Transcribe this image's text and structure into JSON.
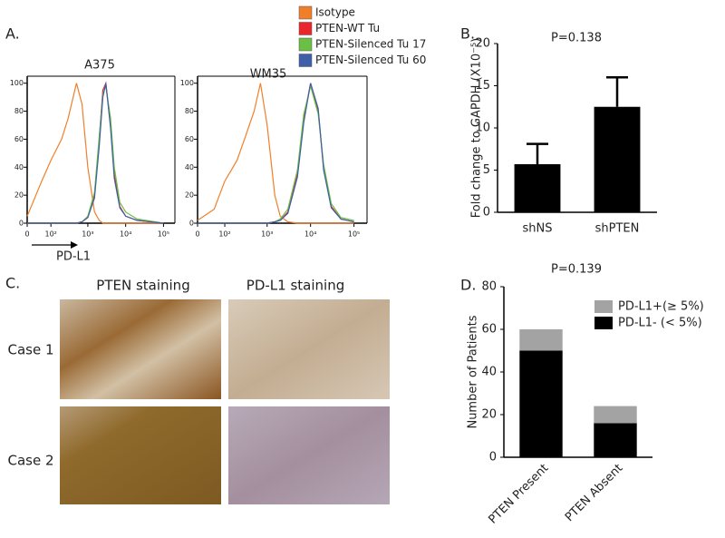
{
  "chart_data": [
    {
      "type": "line",
      "panel": "A.",
      "title": "A375",
      "x_label": "PD-L1",
      "xscale": "biexponential",
      "x": [
        0,
        50,
        100,
        200,
        300,
        500,
        700,
        1000,
        1500,
        2000,
        2500,
        3000,
        4000,
        5000,
        7000,
        10000,
        20000,
        100000
      ],
      "series": [
        {
          "name": "Isotype",
          "color": "#f07f2a",
          "values": [
            5,
            30,
            45,
            60,
            75,
            100,
            85,
            40,
            8,
            2,
            0,
            0,
            0,
            0,
            0,
            0,
            0,
            0
          ]
        },
        {
          "name": "PTEN-WT Tu",
          "color": "#e8262b",
          "values": [
            0,
            0,
            0,
            0,
            0,
            0,
            1,
            4,
            20,
            60,
            95,
            100,
            70,
            35,
            12,
            5,
            2,
            0
          ]
        },
        {
          "name": "PTEN-Silenced Tu 17",
          "color": "#6cbf45",
          "values": [
            0,
            0,
            0,
            0,
            0,
            0,
            1,
            5,
            22,
            62,
            92,
            98,
            75,
            40,
            15,
            8,
            3,
            0
          ]
        },
        {
          "name": "PTEN-Silenced Tu 60",
          "color": "#3f5fa8",
          "values": [
            0,
            0,
            0,
            0,
            0,
            0,
            1,
            4,
            18,
            55,
            90,
            100,
            68,
            32,
            11,
            5,
            2,
            0
          ]
        }
      ],
      "xlim": [
        0,
        200000
      ],
      "xticks": [
        0,
        {
          "value": 100,
          "label": "10²"
        },
        {
          "value": 1000,
          "label": "10³"
        },
        {
          "value": 10000,
          "label": "10⁴"
        },
        {
          "value": 100000,
          "label": "10⁵"
        }
      ],
      "ylim": [
        0,
        105
      ],
      "yticks": [
        0,
        20,
        40,
        60,
        80,
        100
      ]
    },
    {
      "type": "line",
      "title": "WM35",
      "xscale": "biexponential",
      "x": [
        0,
        50,
        100,
        200,
        300,
        500,
        700,
        1000,
        1500,
        2000,
        3000,
        5000,
        7000,
        10000,
        15000,
        20000,
        30000,
        50000,
        100000
      ],
      "series": [
        {
          "color": "#f07f2a",
          "values": [
            2,
            10,
            30,
            45,
            60,
            80,
            100,
            70,
            20,
            5,
            1,
            0,
            0,
            0,
            0,
            0,
            0,
            0,
            0
          ]
        },
        {
          "color": "#e8262b",
          "values": [
            0,
            0,
            0,
            0,
            0,
            0,
            0,
            0,
            1,
            2,
            8,
            35,
            75,
            100,
            80,
            40,
            12,
            3,
            1
          ]
        },
        {
          "color": "#6cbf45",
          "values": [
            0,
            0,
            0,
            0,
            0,
            0,
            0,
            0,
            1,
            3,
            10,
            38,
            78,
            98,
            78,
            42,
            14,
            4,
            2
          ]
        },
        {
          "color": "#3f5fa8",
          "values": [
            0,
            0,
            0,
            0,
            0,
            0,
            0,
            0,
            1,
            2,
            7,
            33,
            72,
            100,
            82,
            38,
            11,
            3,
            1
          ]
        }
      ],
      "xlim": [
        0,
        200000
      ],
      "xticks": [
        0,
        {
          "value": 100,
          "label": "10²"
        },
        {
          "value": 1000,
          "label": "10³"
        },
        {
          "value": 10000,
          "label": "10⁴"
        },
        {
          "value": 100000,
          "label": "10⁵"
        }
      ],
      "ylim": [
        0,
        105
      ],
      "yticks": [
        0,
        20,
        40,
        60,
        80,
        100
      ]
    },
    {
      "type": "bar",
      "panel": "B.",
      "title": "P=0.138",
      "y_label": "Fold change to GAPDH (X10⁻⁵)",
      "categories": [
        "shNS",
        "shPTEN"
      ],
      "values": [
        5.7,
        12.5
      ],
      "errors": [
        2.4,
        3.5
      ],
      "color": "#000000",
      "ylim": [
        0,
        20
      ],
      "yticks": [
        0,
        5,
        10,
        15,
        20
      ]
    },
    {
      "type": "bar",
      "panel": "D.",
      "title": "P=0.139",
      "y_label": "Number of Patients",
      "stacked": true,
      "legend": "upper right",
      "categories": [
        "PTEN Present",
        "PTEN Absent"
      ],
      "series": [
        {
          "name": "PD-L1+(≥ 5%)",
          "color": "#a3a3a3",
          "values": [
            10,
            8
          ]
        },
        {
          "name": "PD-L1- (< 5%)",
          "color": "#000000",
          "values": [
            50,
            16
          ]
        }
      ],
      "ylim": [
        0,
        80
      ],
      "yticks": [
        0,
        20,
        40,
        60,
        80
      ]
    }
  ],
  "panel_c": {
    "label": "C.",
    "columns": [
      "PTEN staining",
      "PD-L1 staining"
    ],
    "rows": [
      "Case 1",
      "Case 2"
    ]
  }
}
